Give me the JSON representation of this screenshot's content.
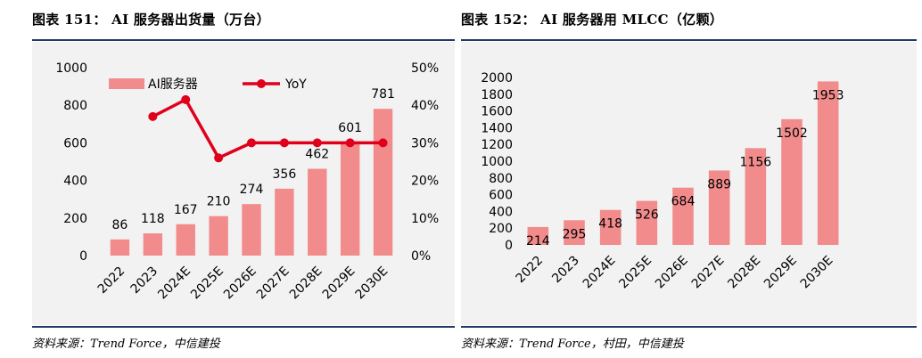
{
  "left": {
    "title": "图表 151：  AI 服务器出货量（万台）",
    "source": "资料来源：Trend Force，中信建投",
    "chart_data": {
      "type": "bar",
      "categories": [
        "2022",
        "2023",
        "2024E",
        "2025E",
        "2026E",
        "2027E",
        "2028E",
        "2029E",
        "2030E"
      ],
      "series": [
        {
          "name": "AI服务器",
          "type": "bar",
          "axis": "left",
          "color": "#f28b8b",
          "values": [
            86,
            118,
            167,
            210,
            274,
            356,
            462,
            601,
            781
          ]
        },
        {
          "name": "YoY",
          "type": "line",
          "axis": "right",
          "color": "#e0001b",
          "values": [
            null,
            0.37,
            0.415,
            0.26,
            0.3,
            0.3,
            0.3,
            0.3,
            0.3
          ]
        }
      ],
      "ylim": [
        0,
        1000
      ],
      "yticks": [
        "0",
        "200",
        "400",
        "600",
        "800",
        "1000"
      ],
      "y2lim": [
        0,
        0.5
      ],
      "y2ticks": [
        "0%",
        "10%",
        "20%",
        "30%",
        "40%",
        "50%"
      ],
      "data_labels": [
        "86",
        "118",
        "167",
        "210",
        "274",
        "356",
        "462",
        "601",
        "781"
      ],
      "legend_position": "top",
      "grid": false
    }
  },
  "right": {
    "title": "图表 152：  AI 服务器用 MLCC（亿颗）",
    "source": "资料来源：Trend Force，村田，中信建投",
    "chart_data": {
      "type": "bar",
      "categories": [
        "2022",
        "2023",
        "2024E",
        "2025E",
        "2026E",
        "2027E",
        "2028E",
        "2029E",
        "2030E"
      ],
      "series": [
        {
          "color": "#f28b8b",
          "values": [
            214,
            295,
            418,
            526,
            684,
            889,
            1156,
            1502,
            1953
          ]
        }
      ],
      "ylim": [
        0,
        2000
      ],
      "yticks": [
        "0",
        "200",
        "400",
        "600",
        "800",
        "1000",
        "1200",
        "1400",
        "1600",
        "1800",
        "2000"
      ],
      "data_labels": [
        "214",
        "295",
        "418",
        "526",
        "684",
        "889",
        "1156",
        "1502",
        "1953"
      ],
      "grid": false
    }
  }
}
